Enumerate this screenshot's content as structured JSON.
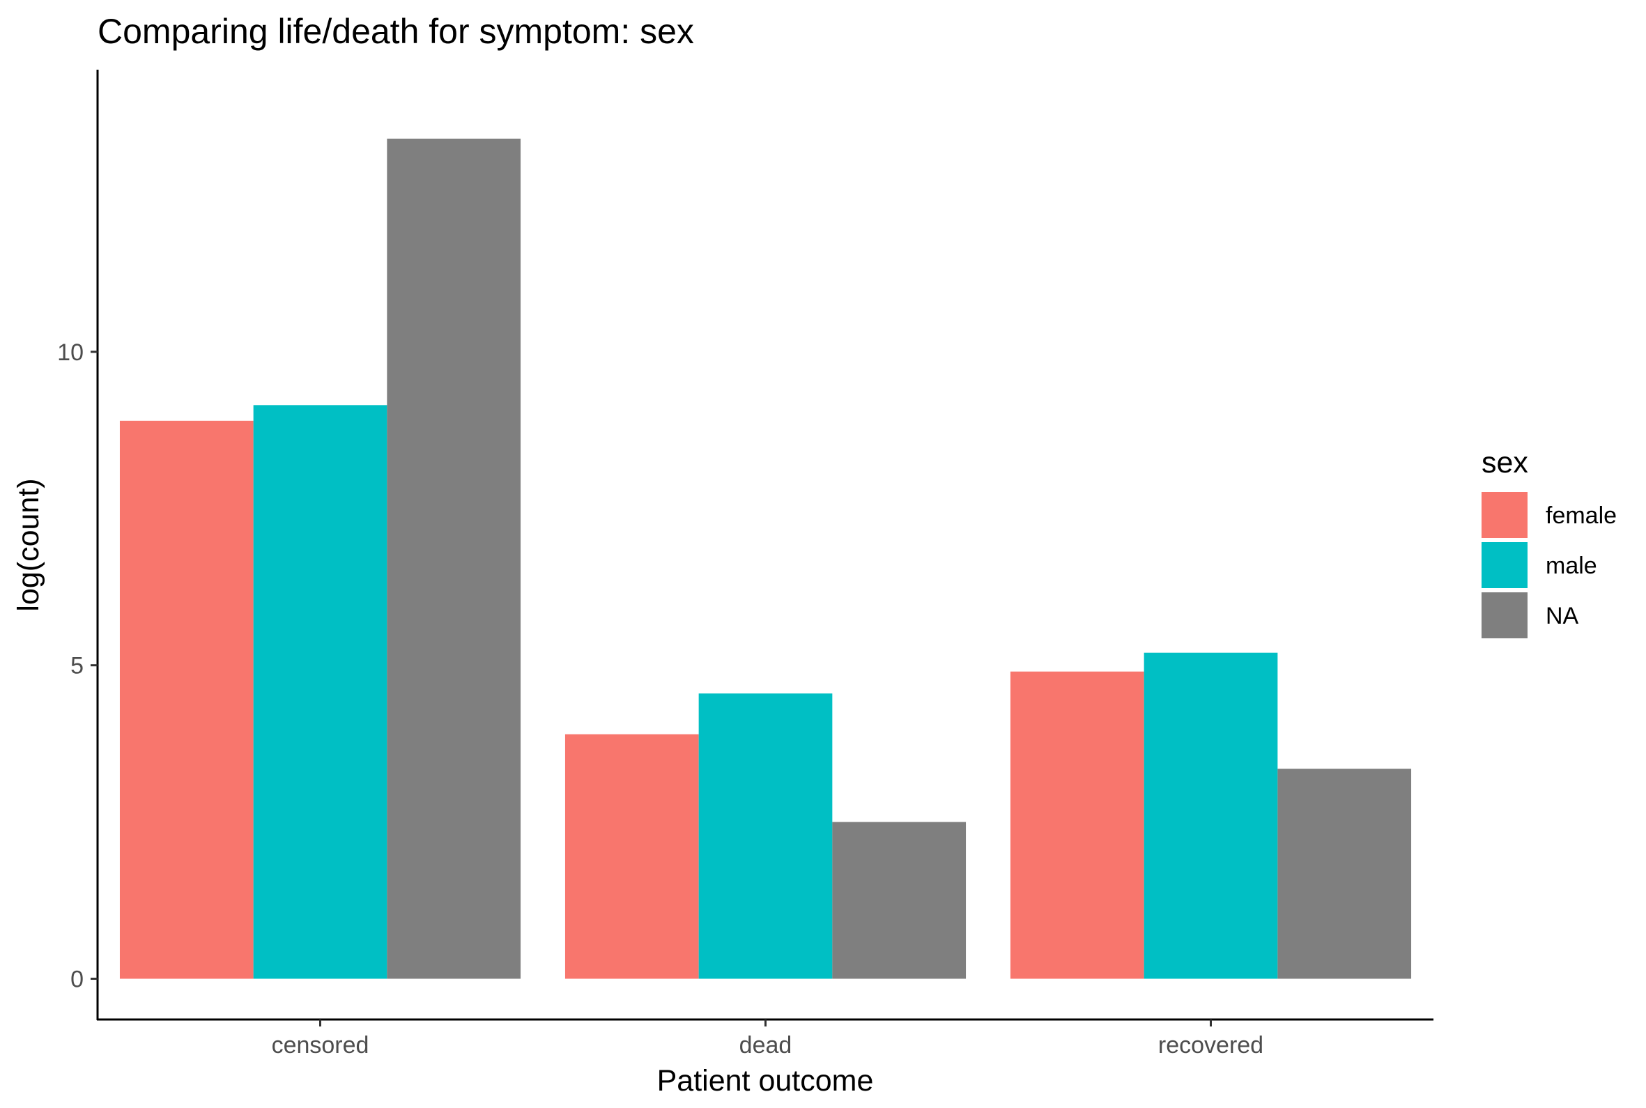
{
  "chart_data": {
    "type": "bar",
    "title": "Comparing life/death for symptom: sex",
    "xlabel": "Patient outcome",
    "ylabel": "log(count)",
    "categories": [
      "censored",
      "dead",
      "recovered"
    ],
    "series": [
      {
        "name": "female",
        "color": "#F8766D",
        "values": [
          8.9,
          3.9,
          4.9
        ]
      },
      {
        "name": "male",
        "color": "#00BFC4",
        "values": [
          9.15,
          4.55,
          5.2
        ]
      },
      {
        "name": "NA",
        "color": "#7F7F7F",
        "values": [
          13.4,
          2.5,
          3.35
        ]
      }
    ],
    "ylim": [
      -0.65,
      14.5
    ],
    "yticks": [
      0,
      5,
      10
    ],
    "grid": false,
    "legend": {
      "title": "sex",
      "position": "right"
    }
  }
}
